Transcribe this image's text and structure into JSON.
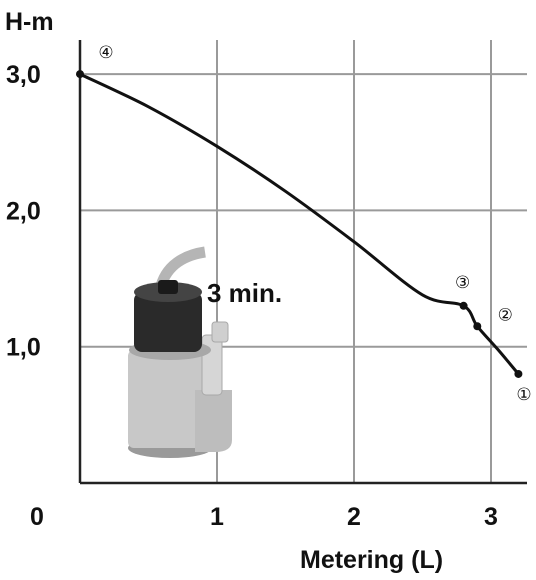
{
  "chart_data": {
    "type": "line",
    "ylabel": "H-m",
    "xlabel": "Metering (L)",
    "x_ticks": [
      {
        "value": 0,
        "label": "0"
      },
      {
        "value": 1,
        "label": "1"
      },
      {
        "value": 2,
        "label": "2"
      },
      {
        "value": 3,
        "label": "3"
      }
    ],
    "y_ticks": [
      {
        "value": 1,
        "label": "1,0"
      },
      {
        "value": 2,
        "label": "2,0"
      },
      {
        "value": 3,
        "label": "3,0"
      }
    ],
    "xlim": [
      0,
      3.2
    ],
    "ylim": [
      0,
      3.0
    ],
    "grid": true,
    "annotation": "3 min.",
    "curve": [
      {
        "x": 0,
        "y": 3.0
      },
      {
        "x": 0.5,
        "y": 2.76
      },
      {
        "x": 1.0,
        "y": 2.47
      },
      {
        "x": 1.5,
        "y": 2.14
      },
      {
        "x": 2.0,
        "y": 1.77
      },
      {
        "x": 2.5,
        "y": 1.38
      },
      {
        "x": 2.8,
        "y": 1.3
      },
      {
        "x": 2.9,
        "y": 1.15
      },
      {
        "x": 3.05,
        "y": 0.98
      },
      {
        "x": 3.2,
        "y": 0.8
      }
    ],
    "points": [
      {
        "label": "①",
        "x": 3.2,
        "y": 0.8
      },
      {
        "label": "②",
        "x": 2.9,
        "y": 1.15
      },
      {
        "label": "③",
        "x": 2.8,
        "y": 1.3
      },
      {
        "label": "④",
        "x": 0,
        "y": 3.0
      }
    ],
    "colors": {
      "line": "#111111",
      "grid": "#9a9a9a",
      "pump_body": "#c8c8c8",
      "pump_cap": "#2a2a2a"
    }
  }
}
